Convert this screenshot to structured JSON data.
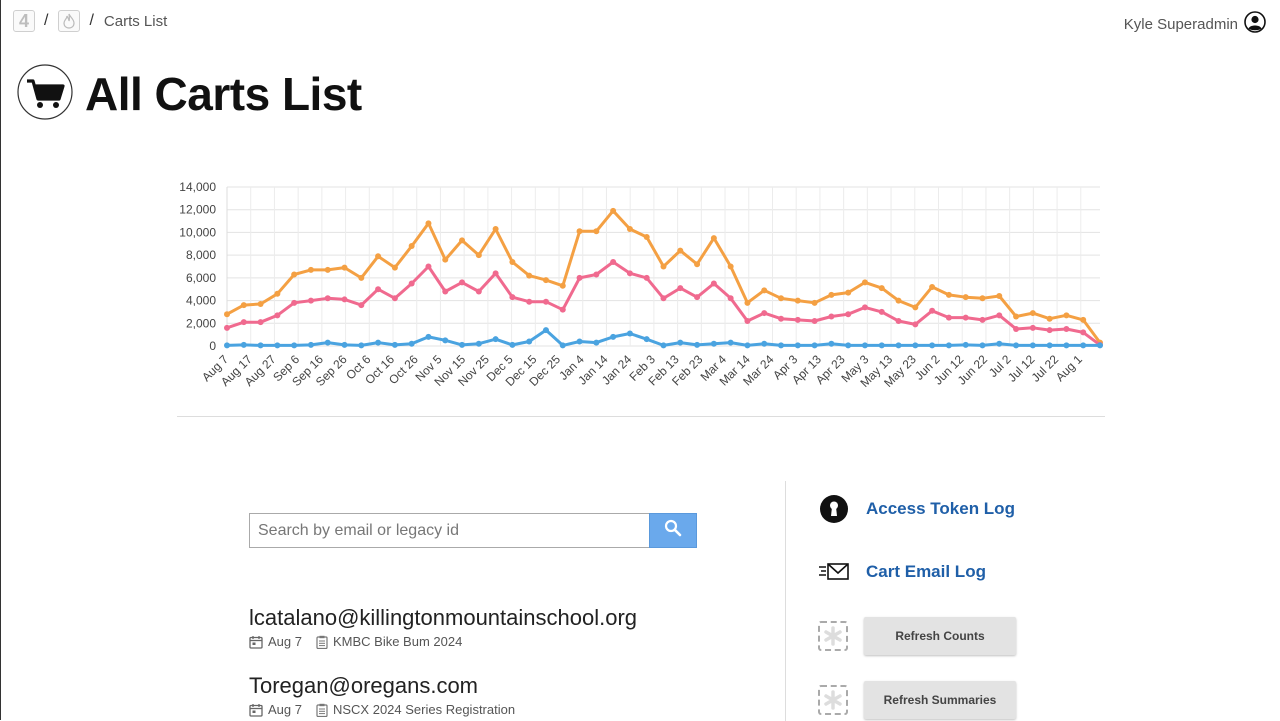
{
  "breadcrumb": {
    "home_label": "4",
    "separator": "/",
    "current": "Carts List"
  },
  "user": {
    "name": "Kyle Superadmin"
  },
  "page": {
    "title": "All Carts List"
  },
  "search": {
    "placeholder": "Search by email or legacy id",
    "value": ""
  },
  "results": [
    {
      "email": "lcatalano@killingtonmountainschool.org",
      "date": "Aug 7",
      "event": "KMBC Bike Bum 2024"
    },
    {
      "email": "Toregan@oregans.com",
      "date": "Aug 7",
      "event": "NSCX 2024 Series Registration"
    }
  ],
  "side_links": {
    "access_token_log": "Access Token Log",
    "cart_email_log": "Cart Email Log"
  },
  "buttons": {
    "refresh_counts": "Refresh Counts",
    "refresh_summaries": "Refresh Summaries"
  },
  "colors": {
    "accent_link": "#1f5fa8",
    "search_button": "#6aa9ec",
    "series_orange": "#f4a043",
    "series_pink": "#f06a8f",
    "series_blue": "#4aa3e0"
  },
  "chart_data": {
    "type": "line",
    "ylim": [
      0,
      14000
    ],
    "yticks": [
      0,
      2000,
      4000,
      6000,
      8000,
      10000,
      12000,
      14000
    ],
    "ytick_labels": [
      "0",
      "2,000",
      "4,000",
      "6,000",
      "8,000",
      "10,000",
      "12,000",
      "14,000"
    ],
    "xtick_labels": [
      "Aug 7",
      "Aug 17",
      "Aug 27",
      "Sep 6",
      "Sep 16",
      "Sep 26",
      "Oct 6",
      "Oct 16",
      "Oct 26",
      "Nov 5",
      "Nov 15",
      "Nov 25",
      "Dec 5",
      "Dec 15",
      "Dec 25",
      "Jan 4",
      "Jan 14",
      "Jan 24",
      "Feb 3",
      "Feb 13",
      "Feb 23",
      "Mar 4",
      "Mar 14",
      "Mar 24",
      "Apr 3",
      "Apr 13",
      "Apr 23",
      "May 3",
      "May 13",
      "May 23",
      "Jun 2",
      "Jun 12",
      "Jun 22",
      "Jul 2",
      "Jul 12",
      "Jul 22",
      "Aug 1"
    ],
    "grid": true,
    "legend": "none",
    "series": [
      {
        "color": "#f4a043",
        "values": [
          2800,
          3600,
          3700,
          4600,
          6300,
          6700,
          6700,
          6900,
          6000,
          7900,
          6900,
          8800,
          10800,
          7600,
          9300,
          8000,
          10300,
          7400,
          6200,
          5800,
          5300,
          10100,
          10100,
          11900,
          10300,
          9600,
          7000,
          8400,
          7200,
          9500,
          7000,
          3800,
          4900,
          4200,
          4000,
          3800,
          4500,
          4700,
          5600,
          5100,
          4000,
          3400,
          5200,
          4500,
          4300,
          4200,
          4400,
          2600,
          2900,
          2400,
          2700,
          2300,
          300
        ]
      },
      {
        "color": "#f06a8f",
        "values": [
          1600,
          2100,
          2100,
          2700,
          3800,
          4000,
          4200,
          4100,
          3600,
          5000,
          4200,
          5500,
          7000,
          4800,
          5600,
          4800,
          6400,
          4300,
          3900,
          3900,
          3200,
          6000,
          6300,
          7400,
          6400,
          6000,
          4200,
          5100,
          4300,
          5500,
          4200,
          2200,
          2900,
          2400,
          2300,
          2200,
          2600,
          2800,
          3400,
          3000,
          2200,
          1900,
          3100,
          2500,
          2500,
          2300,
          2700,
          1500,
          1600,
          1400,
          1500,
          1200,
          100
        ]
      },
      {
        "color": "#4aa3e0",
        "values": [
          50,
          100,
          50,
          50,
          50,
          100,
          300,
          100,
          50,
          300,
          100,
          200,
          800,
          500,
          100,
          200,
          600,
          100,
          400,
          1400,
          50,
          400,
          300,
          800,
          1100,
          600,
          50,
          300,
          100,
          200,
          300,
          50,
          200,
          50,
          50,
          50,
          200,
          50,
          50,
          50,
          50,
          50,
          50,
          50,
          100,
          50,
          200,
          50,
          50,
          50,
          50,
          50,
          50
        ]
      }
    ]
  }
}
